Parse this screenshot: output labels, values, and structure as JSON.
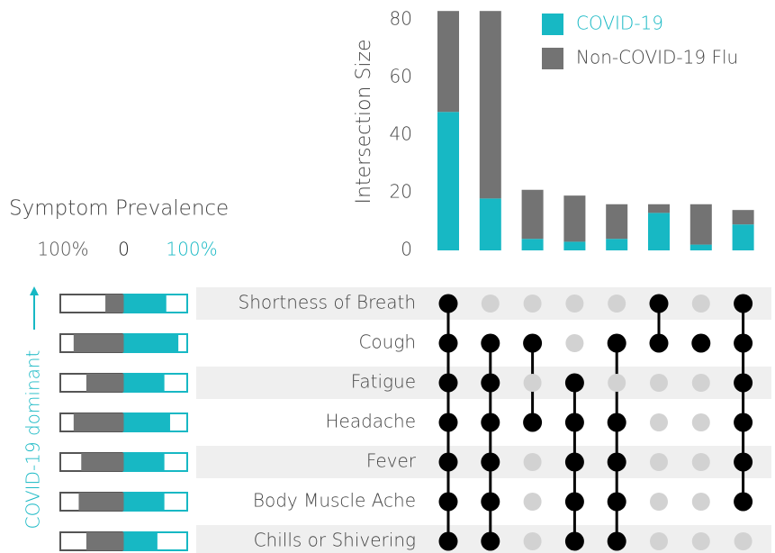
{
  "chart_data": {
    "type": "upset",
    "ylabel": "Intersection Size",
    "ylim": [
      0,
      84
    ],
    "yticks": [
      0,
      20,
      40,
      60,
      80
    ],
    "series": [
      {
        "name": "COVID-19",
        "color": "#17b8c4",
        "values": [
          48,
          18,
          4,
          3,
          4,
          13,
          2,
          9
        ]
      },
      {
        "name": "Non-COVID-19 Flu",
        "color": "#737373",
        "values": [
          35,
          65,
          17,
          16,
          12,
          3,
          14,
          5
        ]
      }
    ],
    "sets": [
      "Shortness of Breath",
      "Cough",
      "Fatigue",
      "Headache",
      "Fever",
      "Body Muscle Ache",
      "Chills or Shivering"
    ],
    "membership": [
      [
        true,
        true,
        true,
        true,
        true,
        true,
        true
      ],
      [
        false,
        true,
        true,
        true,
        true,
        true,
        true
      ],
      [
        false,
        true,
        false,
        true,
        false,
        false,
        false
      ],
      [
        false,
        false,
        true,
        true,
        true,
        true,
        true
      ],
      [
        false,
        true,
        false,
        true,
        true,
        true,
        true
      ],
      [
        true,
        true,
        false,
        false,
        false,
        false,
        false
      ],
      [
        false,
        true,
        false,
        false,
        false,
        false,
        false
      ],
      [
        true,
        true,
        true,
        true,
        true,
        true,
        false
      ]
    ],
    "prevalence": {
      "title": "Symptom Prevalence",
      "xlim": [
        -100,
        100
      ],
      "xticks": [
        {
          "value": -100,
          "label": "100%"
        },
        0,
        {
          "value": 100,
          "label": "100%"
        }
      ],
      "non_covid": [
        29,
        79,
        59,
        79,
        67,
        71,
        59
      ],
      "covid": [
        67,
        86,
        64,
        73,
        64,
        64,
        53
      ],
      "annotation": "COVID-19 dominant"
    }
  }
}
